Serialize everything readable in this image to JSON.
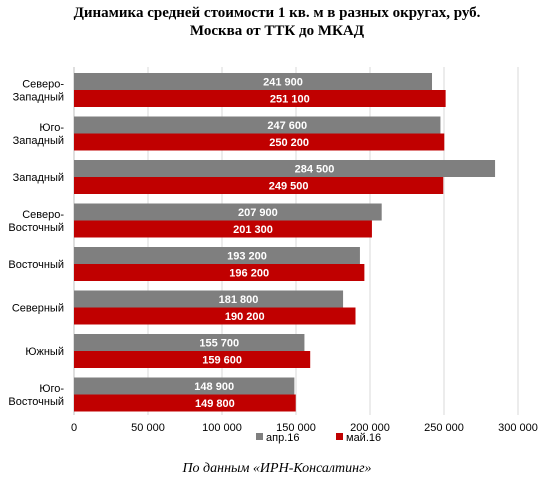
{
  "title_line1": "Динамика средней стоимости 1 кв. м в разных округах, руб.",
  "title_line2": "Москва от ТТК до МКАД",
  "source": "По данным «ИРН-Консалтинг»",
  "chart_data": {
    "type": "bar",
    "orientation": "horizontal",
    "categories": [
      [
        "Северо-",
        "Западный"
      ],
      [
        "Юго-",
        "Западный"
      ],
      [
        "Западный"
      ],
      [
        "Северо-",
        "Восточный"
      ],
      [
        "Восточный"
      ],
      [
        "Северный"
      ],
      [
        "Южный"
      ],
      [
        "Юго-",
        "Восточный"
      ]
    ],
    "series": [
      {
        "name": "апр.16",
        "color": "#7f7f7f",
        "values": [
          241900,
          247600,
          284500,
          207900,
          193200,
          181800,
          155700,
          148900
        ],
        "labels": [
          "241 900",
          "247 600",
          "284 500",
          "207 900",
          "193 200",
          "181 800",
          "155 700",
          "148 900"
        ]
      },
      {
        "name": "май.16",
        "color": "#c00000",
        "values": [
          251100,
          250200,
          249500,
          201300,
          196200,
          190200,
          159600,
          149800
        ],
        "labels": [
          "251 100",
          "250 200",
          "249 500",
          "201 300",
          "196 200",
          "190 200",
          "159 600",
          "149 800"
        ]
      }
    ],
    "xlim": [
      0,
      300000
    ],
    "xticks": [
      0,
      50000,
      100000,
      150000,
      200000,
      250000,
      300000
    ],
    "xtick_labels": [
      "0",
      "50 000",
      "100 000",
      "150 000",
      "200 000",
      "250 000",
      "300 000"
    ],
    "grid": true,
    "legend_position": "bottom"
  }
}
